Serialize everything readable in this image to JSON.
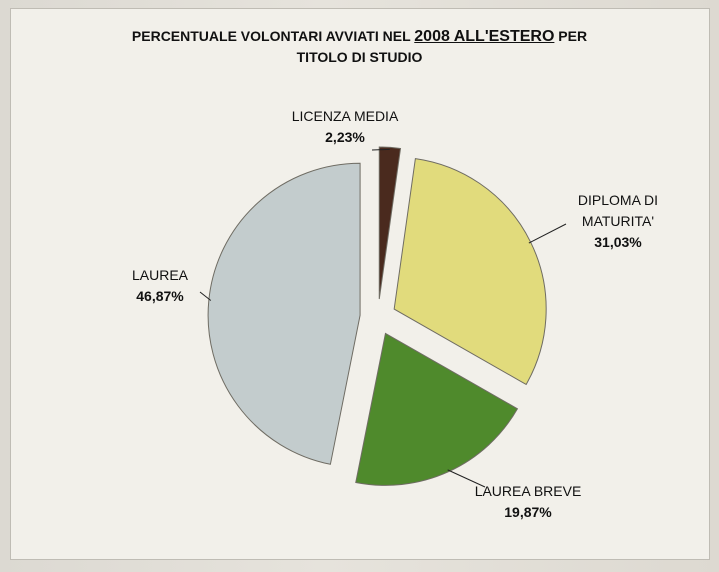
{
  "chart_data": {
    "type": "pie",
    "title_parts": {
      "pre": "PERCENTUALE VOLONTARI AVVIATI NEL ",
      "underlined": "2008 ALL'ESTERO",
      "post": " PER",
      "line2": "TITOLO DI STUDIO"
    },
    "slices": [
      {
        "label": "LICENZA MEDIA",
        "value": 2.23,
        "value_text": "2,23%",
        "color": "#4a2a1e"
      },
      {
        "label": "DIPLOMA DI MATURITA'",
        "label_lines": [
          "DIPLOMA DI",
          "MATURITA'"
        ],
        "value": 31.03,
        "value_text": "31,03%",
        "color": "#e1db7c"
      },
      {
        "label": "LAUREA BREVE",
        "value": 19.87,
        "value_text": "19,87%",
        "color": "#4f8a2c"
      },
      {
        "label": "LAUREA",
        "value": 46.87,
        "value_text": "46,87%",
        "color": "#c3cccd"
      }
    ]
  }
}
